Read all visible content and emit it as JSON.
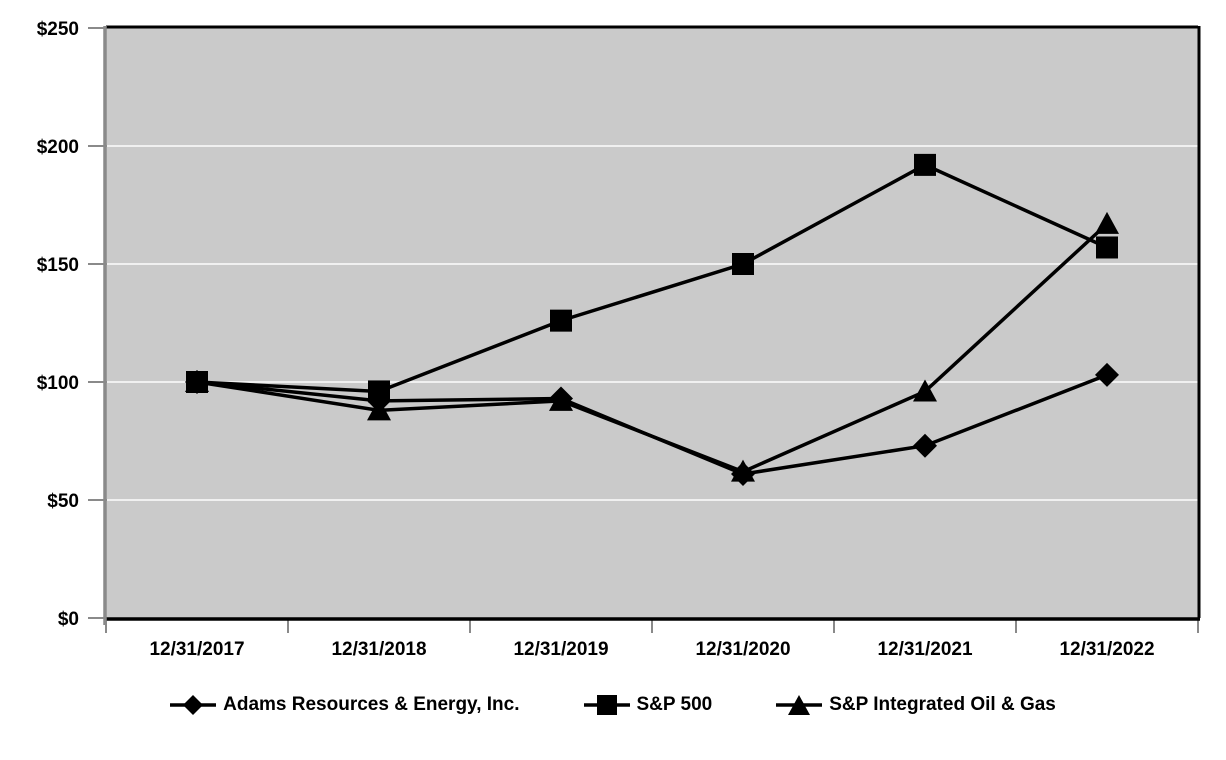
{
  "chart_data": {
    "type": "line",
    "title": "",
    "categories": [
      "12/31/2017",
      "12/31/2018",
      "12/31/2019",
      "12/31/2020",
      "12/31/2021",
      "12/31/2022"
    ],
    "series": [
      {
        "name": "Adams Resources & Energy, Inc.",
        "marker": "diamond",
        "values": [
          100,
          92,
          93,
          61,
          73,
          103
        ]
      },
      {
        "name": "S&P 500",
        "marker": "square",
        "values": [
          100,
          96,
          126,
          150,
          192,
          157
        ]
      },
      {
        "name": "S&P Integrated Oil & Gas",
        "marker": "triangle",
        "values": [
          100,
          88,
          92,
          62,
          96,
          167
        ]
      }
    ],
    "y_axis": {
      "min": 0,
      "max": 250,
      "step": 50,
      "tick_labels": [
        "$0",
        "$50",
        "$100",
        "$150",
        "$200",
        "$250"
      ]
    },
    "x_axis": {
      "tick_count": 7
    },
    "grid": true,
    "legend_position": "bottom",
    "colors": {
      "line": "#000000",
      "marker": "#000000",
      "text": "#000000",
      "plot_background": "#cacaca",
      "gridline": "#f0f0f0",
      "axis_gray": "#8a8a8a",
      "axis_black": "#000000",
      "page_background": "#ffffff"
    }
  }
}
